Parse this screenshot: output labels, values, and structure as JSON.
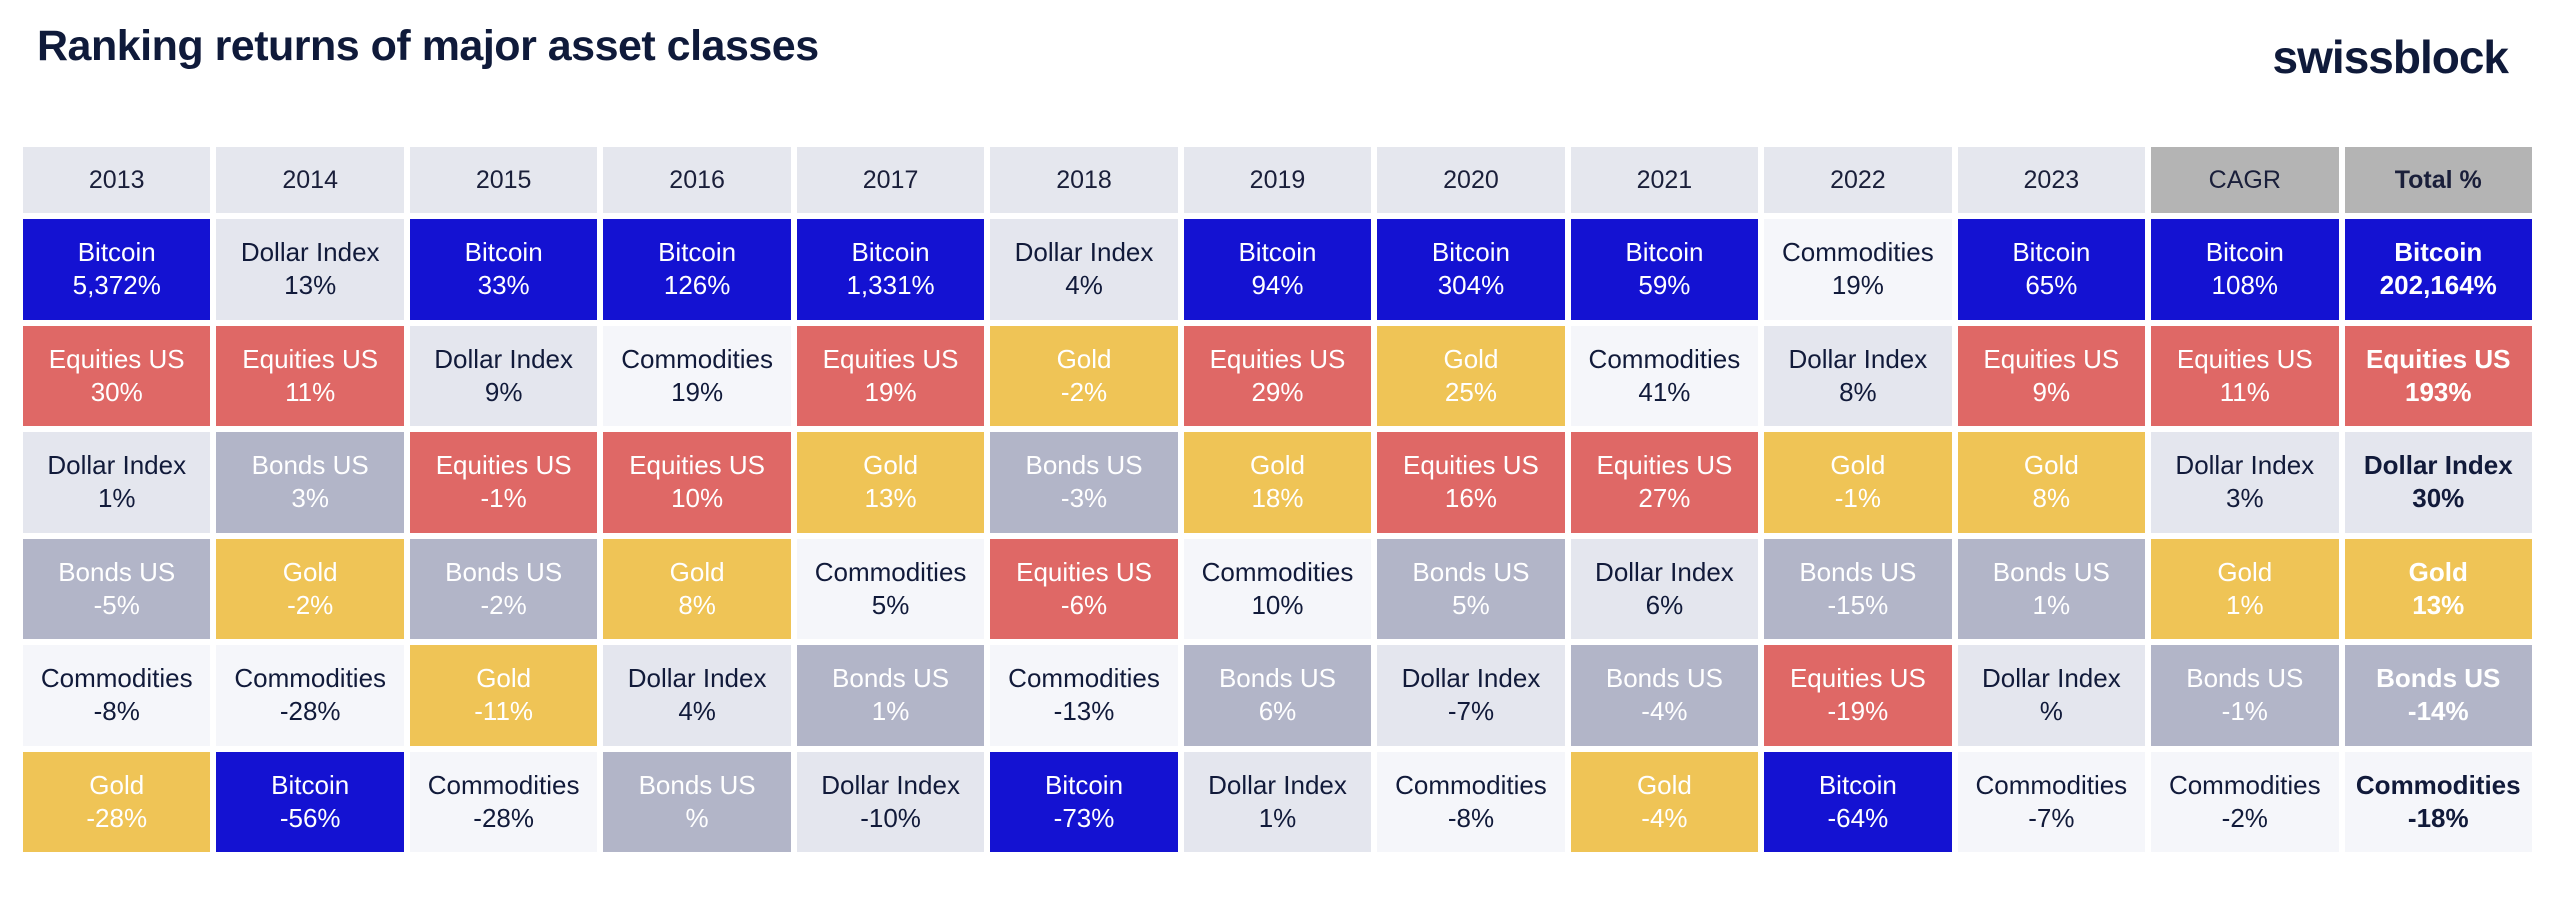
{
  "title": "Ranking returns of major asset classes",
  "brand": "swissblock",
  "colors": {
    "Bitcoin": "#1412d2",
    "Equities US": "#df6866",
    "Gold": "#efc456",
    "Bonds US": "#b2b5c8",
    "Dollar Index": "#e4e6ee",
    "Commodities": "#f5f6fa"
  },
  "chart_data": {
    "type": "table",
    "columns": [
      "2013",
      "2014",
      "2015",
      "2016",
      "2017",
      "2018",
      "2019",
      "2020",
      "2021",
      "2022",
      "2023",
      "CAGR",
      "Total %"
    ],
    "rows_by_column": [
      [
        {
          "asset": "Bitcoin",
          "value": "5,372%"
        },
        {
          "asset": "Equities US",
          "value": "30%"
        },
        {
          "asset": "Dollar Index",
          "value": "1%"
        },
        {
          "asset": "Bonds US",
          "value": "-5%"
        },
        {
          "asset": "Commodities",
          "value": "-8%"
        },
        {
          "asset": "Gold",
          "value": "-28%"
        }
      ],
      [
        {
          "asset": "Dollar Index",
          "value": "13%"
        },
        {
          "asset": "Equities US",
          "value": "11%"
        },
        {
          "asset": "Bonds US",
          "value": "3%"
        },
        {
          "asset": "Gold",
          "value": "-2%"
        },
        {
          "asset": "Commodities",
          "value": "-28%"
        },
        {
          "asset": "Bitcoin",
          "value": "-56%"
        }
      ],
      [
        {
          "asset": "Bitcoin",
          "value": "33%"
        },
        {
          "asset": "Dollar Index",
          "value": "9%"
        },
        {
          "asset": "Equities US",
          "value": "-1%"
        },
        {
          "asset": "Bonds US",
          "value": "-2%"
        },
        {
          "asset": "Gold",
          "value": "-11%"
        },
        {
          "asset": "Commodities",
          "value": "-28%"
        }
      ],
      [
        {
          "asset": "Bitcoin",
          "value": "126%"
        },
        {
          "asset": "Commodities",
          "value": "19%"
        },
        {
          "asset": "Equities US",
          "value": "10%"
        },
        {
          "asset": "Gold",
          "value": "8%"
        },
        {
          "asset": "Dollar Index",
          "value": "4%"
        },
        {
          "asset": "Bonds US",
          "value": "%"
        }
      ],
      [
        {
          "asset": "Bitcoin",
          "value": "1,331%"
        },
        {
          "asset": "Equities US",
          "value": "19%"
        },
        {
          "asset": "Gold",
          "value": "13%"
        },
        {
          "asset": "Commodities",
          "value": "5%"
        },
        {
          "asset": "Bonds US",
          "value": "1%"
        },
        {
          "asset": "Dollar Index",
          "value": "-10%"
        }
      ],
      [
        {
          "asset": "Dollar Index",
          "value": "4%"
        },
        {
          "asset": "Gold",
          "value": "-2%"
        },
        {
          "asset": "Bonds US",
          "value": "-3%"
        },
        {
          "asset": "Equities US",
          "value": "-6%"
        },
        {
          "asset": "Commodities",
          "value": "-13%"
        },
        {
          "asset": "Bitcoin",
          "value": "-73%"
        }
      ],
      [
        {
          "asset": "Bitcoin",
          "value": "94%"
        },
        {
          "asset": "Equities US",
          "value": "29%"
        },
        {
          "asset": "Gold",
          "value": "18%"
        },
        {
          "asset": "Commodities",
          "value": "10%"
        },
        {
          "asset": "Bonds US",
          "value": "6%"
        },
        {
          "asset": "Dollar Index",
          "value": "1%"
        }
      ],
      [
        {
          "asset": "Bitcoin",
          "value": "304%"
        },
        {
          "asset": "Gold",
          "value": "25%"
        },
        {
          "asset": "Equities US",
          "value": "16%"
        },
        {
          "asset": "Bonds US",
          "value": "5%"
        },
        {
          "asset": "Dollar Index",
          "value": "-7%"
        },
        {
          "asset": "Commodities",
          "value": "-8%"
        }
      ],
      [
        {
          "asset": "Bitcoin",
          "value": "59%"
        },
        {
          "asset": "Commodities",
          "value": "41%"
        },
        {
          "asset": "Equities US",
          "value": "27%"
        },
        {
          "asset": "Dollar Index",
          "value": "6%"
        },
        {
          "asset": "Bonds US",
          "value": "-4%"
        },
        {
          "asset": "Gold",
          "value": "-4%"
        }
      ],
      [
        {
          "asset": "Commodities",
          "value": "19%"
        },
        {
          "asset": "Dollar Index",
          "value": "8%"
        },
        {
          "asset": "Gold",
          "value": "-1%"
        },
        {
          "asset": "Bonds US",
          "value": "-15%"
        },
        {
          "asset": "Equities US",
          "value": "-19%"
        },
        {
          "asset": "Bitcoin",
          "value": "-64%"
        }
      ],
      [
        {
          "asset": "Bitcoin",
          "value": "65%"
        },
        {
          "asset": "Equities US",
          "value": "9%"
        },
        {
          "asset": "Gold",
          "value": "8%"
        },
        {
          "asset": "Bonds US",
          "value": "1%"
        },
        {
          "asset": "Dollar Index",
          "value": "%"
        },
        {
          "asset": "Commodities",
          "value": "-7%"
        }
      ],
      [
        {
          "asset": "Bitcoin",
          "value": "108%"
        },
        {
          "asset": "Equities US",
          "value": "11%"
        },
        {
          "asset": "Dollar Index",
          "value": "3%"
        },
        {
          "asset": "Gold",
          "value": "1%"
        },
        {
          "asset": "Bonds US",
          "value": "-1%"
        },
        {
          "asset": "Commodities",
          "value": "-2%"
        }
      ],
      [
        {
          "asset": "Bitcoin",
          "value": "202,164%"
        },
        {
          "asset": "Equities US",
          "value": "193%"
        },
        {
          "asset": "Dollar Index",
          "value": "30%"
        },
        {
          "asset": "Gold",
          "value": "13%"
        },
        {
          "asset": "Bonds US",
          "value": "-14%"
        },
        {
          "asset": "Commodities",
          "value": "-18%"
        }
      ]
    ]
  }
}
